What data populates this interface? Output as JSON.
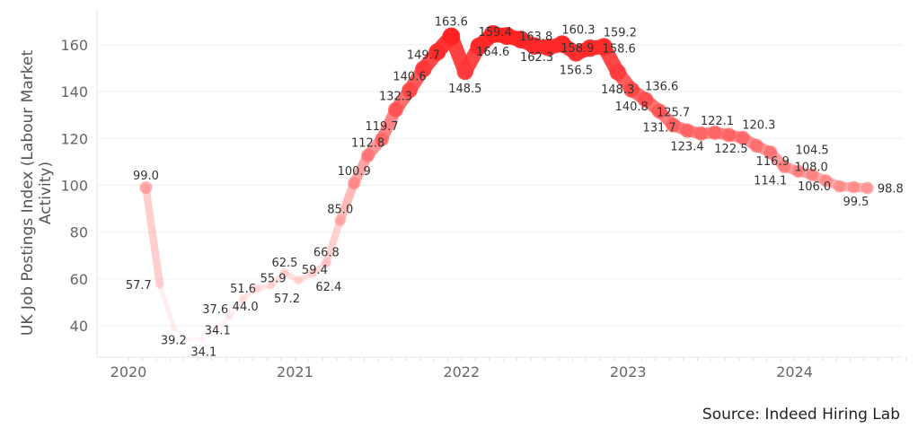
{
  "chart_data": {
    "type": "line",
    "title": "",
    "xlabel": "",
    "ylabel": "UK Job Postings Index (Labour Market Activity)",
    "ylabel_lines": [
      "UK Job Postings Index (Labour Market",
      "Activity)"
    ],
    "ylim": [
      30,
      170
    ],
    "yticks": [
      40,
      60,
      80,
      100,
      120,
      140,
      160
    ],
    "xticks": [
      {
        "label": "2020",
        "month": 0
      },
      {
        "label": "2021",
        "month": 12
      },
      {
        "label": "2022",
        "month": 24
      },
      {
        "label": "2023",
        "month": 36
      },
      {
        "label": "2024",
        "month": 48
      }
    ],
    "x_unit": "months since Jan 2020",
    "grid": true,
    "color": "#ff2020",
    "points": [
      {
        "m": 1,
        "v": 99.0,
        "label": "99.0"
      },
      {
        "m": 2,
        "v": 57.7,
        "label": "57.7"
      },
      {
        "m": 3,
        "v": 39.2,
        "label": "39.2"
      },
      {
        "m": 4,
        "v": 34.1,
        "label": "34.1"
      },
      {
        "m": 5,
        "v": 34.1,
        "label": "34.1"
      },
      {
        "m": 6,
        "v": 37.6,
        "label": "37.6"
      },
      {
        "m": 7,
        "v": 44.0,
        "label": "44.0"
      },
      {
        "m": 8,
        "v": 51.6,
        "label": "51.6"
      },
      {
        "m": 9,
        "v": 55.9,
        "label": "55.9"
      },
      {
        "m": 10,
        "v": 57.2,
        "label": "57.2"
      },
      {
        "m": 11,
        "v": 62.5,
        "label": "62.5"
      },
      {
        "m": 12,
        "v": 59.4,
        "label": "59.4"
      },
      {
        "m": 13,
        "v": 62.4,
        "label": "62.4"
      },
      {
        "m": 14,
        "v": 66.8,
        "label": "66.8"
      },
      {
        "m": 15,
        "v": 85.0,
        "label": "85.0"
      },
      {
        "m": 16,
        "v": 100.9,
        "label": "100.9"
      },
      {
        "m": 17,
        "v": 112.8,
        "label": "112.8"
      },
      {
        "m": 18,
        "v": 119.7,
        "label": "119.7"
      },
      {
        "m": 19,
        "v": 132.3,
        "label": "132.3"
      },
      {
        "m": 20,
        "v": 140.6,
        "label": "140.6"
      },
      {
        "m": 21,
        "v": 149.7,
        "label": "149.7"
      },
      {
        "m": 22,
        "v": 157.0,
        "label": null
      },
      {
        "m": 23,
        "v": 163.6,
        "label": "163.6"
      },
      {
        "m": 24,
        "v": 148.5,
        "label": "148.5"
      },
      {
        "m": 25,
        "v": 159.4,
        "label": "159.4"
      },
      {
        "m": 26,
        "v": 164.6,
        "label": "164.6"
      },
      {
        "m": 27,
        "v": 163.8,
        "label": "163.8"
      },
      {
        "m": 28,
        "v": 162.3,
        "label": "162.3"
      },
      {
        "m": 29,
        "v": 159.5,
        "label": null
      },
      {
        "m": 30,
        "v": 158.9,
        "label": "158.9"
      },
      {
        "m": 31,
        "v": 160.3,
        "label": "160.3"
      },
      {
        "m": 32,
        "v": 156.5,
        "label": "156.5"
      },
      {
        "m": 33,
        "v": 158.6,
        "label": "158.6"
      },
      {
        "m": 34,
        "v": 159.2,
        "label": "159.2"
      },
      {
        "m": 35,
        "v": 148.3,
        "label": "148.3"
      },
      {
        "m": 36,
        "v": 140.8,
        "label": "140.8"
      },
      {
        "m": 37,
        "v": 136.6,
        "label": "136.6"
      },
      {
        "m": 38,
        "v": 131.7,
        "label": "131.7"
      },
      {
        "m": 39,
        "v": 125.7,
        "label": "125.7"
      },
      {
        "m": 40,
        "v": 123.4,
        "label": "123.4"
      },
      {
        "m": 41,
        "v": 122.1,
        "label": "122.1"
      },
      {
        "m": 42,
        "v": 122.5,
        "label": "122.5"
      },
      {
        "m": 43,
        "v": 121.5,
        "label": null
      },
      {
        "m": 44,
        "v": 120.3,
        "label": "120.3"
      },
      {
        "m": 45,
        "v": 116.9,
        "label": "116.9"
      },
      {
        "m": 46,
        "v": 114.1,
        "label": "114.1"
      },
      {
        "m": 47,
        "v": 108.0,
        "label": "108.0"
      },
      {
        "m": 48,
        "v": 106.0,
        "label": "106.0"
      },
      {
        "m": 49,
        "v": 104.5,
        "label": "104.5"
      },
      {
        "m": 50,
        "v": 102.0,
        "label": null
      },
      {
        "m": 51,
        "v": 99.5,
        "label": "99.5"
      },
      {
        "m": 52,
        "v": 99.2,
        "label": null
      },
      {
        "m": 53,
        "v": 98.8,
        "label": "98.8"
      }
    ]
  },
  "source": "Source: Indeed Hiring Lab"
}
